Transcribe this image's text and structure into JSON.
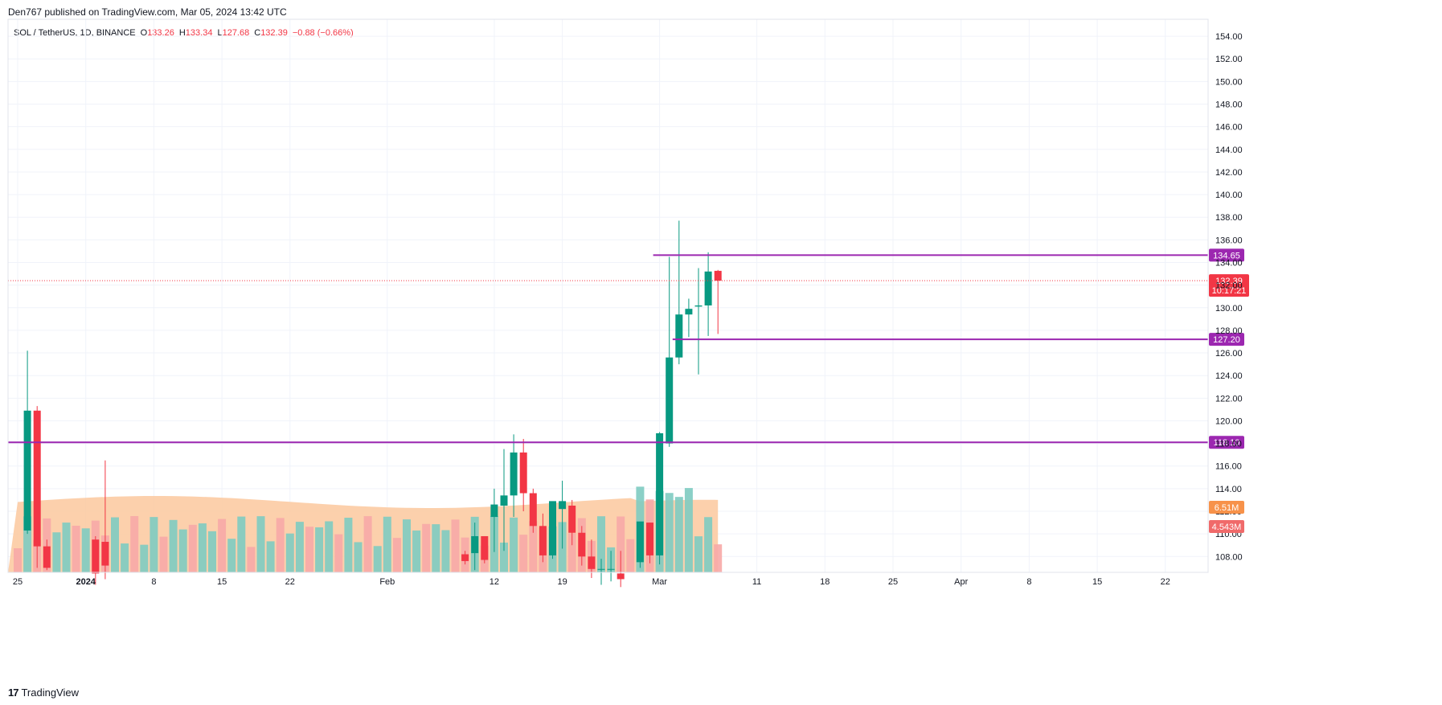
{
  "publisher_line": "Den767 published on TradingView.com, Mar 05, 2024 13:42 UTC",
  "legend": {
    "symbol": "SOL / TetherUS, 1D, BINANCE",
    "open_label": "O",
    "open": "133.26",
    "high_label": "H",
    "high": "133.34",
    "low_label": "L",
    "low": "127.68",
    "close_label": "C",
    "close": "132.39",
    "change": "−0.88 (−0.66%)"
  },
  "footer": {
    "logo": "17",
    "brand": "TradingView"
  },
  "colors": {
    "up": "#089981",
    "down": "#f23645",
    "vol_up": "#7ecbc1",
    "vol_down": "#f7a9a7",
    "vol_ma_fill": "#fcc89e",
    "level_line": "#9c27b0",
    "grid": "#f0f3fa"
  },
  "chart_data": {
    "type": "candlestick",
    "symbol": "SOL / TetherUS",
    "interval": "1D",
    "exchange": "BINANCE",
    "y_ticks": [
      "154.00",
      "152.00",
      "150.00",
      "148.00",
      "146.00",
      "144.00",
      "142.00",
      "140.00",
      "138.00",
      "136.00",
      "134.00",
      "132.00",
      "130.00",
      "128.00",
      "126.00",
      "124.00",
      "122.00",
      "120.00",
      "118.00",
      "116.00",
      "114.00",
      "112.00",
      "110.00",
      "108.00"
    ],
    "ylim": [
      106.6,
      155.5
    ],
    "x_ticks": [
      {
        "label": "25",
        "index": 0
      },
      {
        "label": "2024",
        "index": 7
      },
      {
        "label": "8",
        "index": 14
      },
      {
        "label": "15",
        "index": 21
      },
      {
        "label": "22",
        "index": 28
      },
      {
        "label": "Feb",
        "index": 38
      },
      {
        "label": "12",
        "index": 49
      },
      {
        "label": "19",
        "index": 56
      },
      {
        "label": "Mar",
        "index": 66
      },
      {
        "label": "11",
        "index": 76
      },
      {
        "label": "18",
        "index": 83
      },
      {
        "label": "25",
        "index": 90
      },
      {
        "label": "Apr",
        "index": 97
      },
      {
        "label": "8",
        "index": 104
      },
      {
        "label": "15",
        "index": 111
      },
      {
        "label": "22",
        "index": 118
      }
    ],
    "candles": [
      [
        null,
        null,
        null,
        null
      ],
      [
        110.3,
        126.2,
        110.0,
        120.9
      ],
      [
        120.9,
        121.3,
        107.0,
        108.9
      ],
      [
        108.9,
        109.5,
        106.8,
        107.0
      ],
      [
        null,
        null,
        null,
        null
      ],
      [
        null,
        null,
        null,
        null
      ],
      [
        null,
        null,
        null,
        null
      ],
      [
        null,
        null,
        null,
        null
      ],
      [
        109.5,
        109.8,
        105.5,
        106.5
      ],
      [
        109.3,
        116.5,
        106.0,
        107.2
      ],
      [
        null,
        null,
        null,
        null
      ],
      [
        null,
        null,
        null,
        null
      ],
      [
        null,
        null,
        null,
        null
      ],
      [
        null,
        null,
        null,
        null
      ],
      [
        null,
        null,
        null,
        null
      ],
      [
        null,
        null,
        null,
        null
      ],
      [
        null,
        null,
        null,
        null
      ],
      [
        null,
        null,
        null,
        null
      ],
      [
        null,
        null,
        null,
        null
      ],
      [
        null,
        null,
        null,
        null
      ],
      [
        null,
        null,
        null,
        null
      ],
      [
        null,
        null,
        null,
        null
      ],
      [
        null,
        null,
        null,
        null
      ],
      [
        null,
        null,
        null,
        null
      ],
      [
        null,
        null,
        null,
        null
      ],
      [
        null,
        null,
        null,
        null
      ],
      [
        null,
        null,
        null,
        null
      ],
      [
        null,
        null,
        null,
        null
      ],
      [
        null,
        null,
        null,
        null
      ],
      [
        null,
        null,
        null,
        null
      ],
      [
        null,
        null,
        null,
        null
      ],
      [
        null,
        null,
        null,
        null
      ],
      [
        null,
        null,
        null,
        null
      ],
      [
        null,
        null,
        null,
        null
      ],
      [
        null,
        null,
        null,
        null
      ],
      [
        null,
        null,
        null,
        null
      ],
      [
        null,
        null,
        null,
        null
      ],
      [
        null,
        null,
        null,
        null
      ],
      [
        null,
        null,
        null,
        null
      ],
      [
        null,
        null,
        null,
        null
      ],
      [
        null,
        null,
        null,
        null
      ],
      [
        null,
        null,
        null,
        null
      ],
      [
        null,
        null,
        null,
        null
      ],
      [
        null,
        null,
        null,
        null
      ],
      [
        null,
        null,
        null,
        null
      ],
      [
        null,
        null,
        null,
        null
      ],
      [
        108.2,
        108.5,
        107.3,
        107.6
      ],
      [
        108.3,
        111.0,
        106.8,
        109.8
      ],
      [
        109.8,
        109.8,
        107.4,
        107.7
      ],
      [
        111.5,
        114.0,
        108.4,
        112.6
      ],
      [
        112.5,
        117.5,
        108.5,
        113.4
      ],
      [
        113.4,
        118.8,
        111.5,
        117.2
      ],
      [
        117.2,
        118.4,
        112.0,
        113.6
      ],
      [
        113.6,
        114.0,
        110.1,
        110.7
      ],
      [
        110.7,
        111.8,
        107.5,
        108.1
      ],
      [
        108.1,
        112.8,
        107.8,
        112.9
      ],
      [
        112.2,
        114.7,
        108.7,
        112.9
      ],
      [
        112.5,
        113.0,
        109.0,
        110.1
      ],
      [
        110.1,
        110.7,
        107.2,
        108.0
      ],
      [
        108.0,
        109.5,
        106.1,
        106.9
      ],
      [
        106.9,
        107.8,
        105.5,
        106.9
      ],
      [
        106.9,
        108.5,
        105.8,
        106.9
      ],
      [
        106.5,
        108.5,
        105.3,
        106.0
      ],
      [
        null,
        null,
        null,
        null
      ],
      [
        107.5,
        111.0,
        107.0,
        111.1
      ],
      [
        111.0,
        111.0,
        107.4,
        108.1
      ],
      [
        108.1,
        119.0,
        107.3,
        118.9
      ],
      [
        118.0,
        134.5,
        117.7,
        125.6
      ],
      [
        125.6,
        137.7,
        125.0,
        129.4
      ],
      [
        129.4,
        130.8,
        127.4,
        129.9
      ],
      [
        130.1,
        133.5,
        124.1,
        130.2
      ],
      [
        130.2,
        134.9,
        127.5,
        133.2
      ],
      [
        133.26,
        133.34,
        127.68,
        132.39
      ]
    ],
    "volume": {
      "ma_label": "6.51M",
      "last_label": "4.543M"
    },
    "levels": [
      {
        "value": 134.65,
        "label": "134.65"
      },
      {
        "value": 127.2,
        "label": "127.20"
      },
      {
        "value": 118.1,
        "label": "118.10"
      }
    ],
    "last_price": {
      "value": 132.39,
      "label": "132.39",
      "countdown": "10:17:21"
    }
  }
}
